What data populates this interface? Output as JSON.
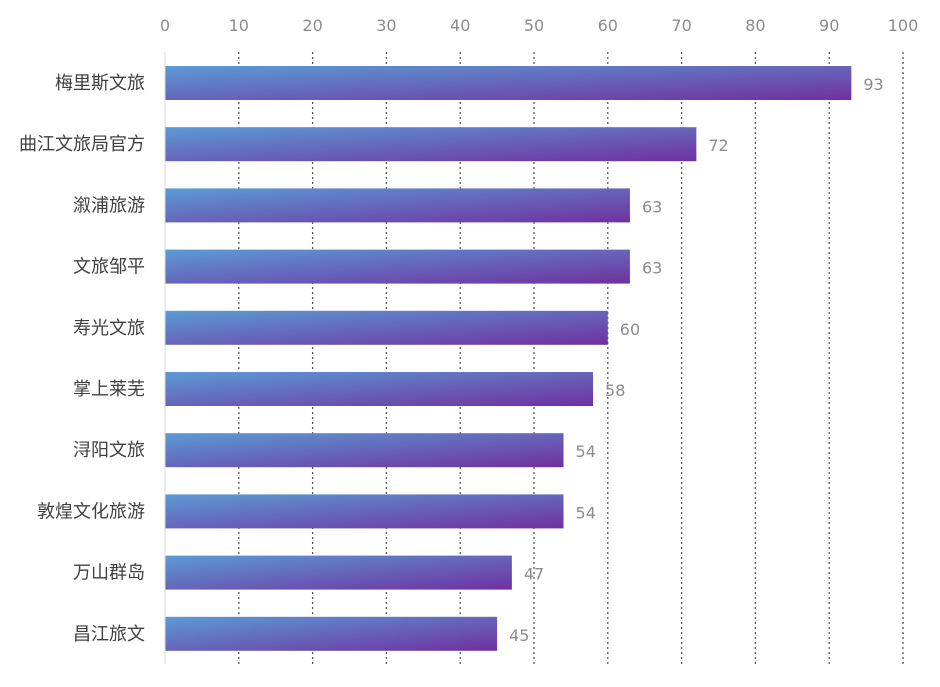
{
  "chart_data": {
    "type": "bar",
    "orientation": "horizontal",
    "title": "",
    "xlabel": "",
    "ylabel": "",
    "xlim": [
      0,
      100
    ],
    "x_ticks": [
      0,
      10,
      20,
      30,
      40,
      50,
      60,
      70,
      80,
      90,
      100
    ],
    "x_axis_position": "top",
    "grid": "vertical-dotted",
    "legend": "none",
    "categories": [
      "梅里斯文旅",
      "曲江文旅局官方",
      "溆浦旅游",
      "文旅邹平",
      "寿光文旅",
      "掌上莱芜",
      "浔阳文旅",
      "敦煌文化旅游",
      "万山群岛",
      "昌江旅文"
    ],
    "values": [
      93,
      72,
      63,
      63,
      60,
      58,
      54,
      54,
      47,
      45
    ],
    "colors": {
      "bar_start": "#5b9bd5",
      "bar_end": "#7030a0",
      "tick_text": "#8c8c8c",
      "category_text": "#404040",
      "grid": "#595959"
    }
  }
}
